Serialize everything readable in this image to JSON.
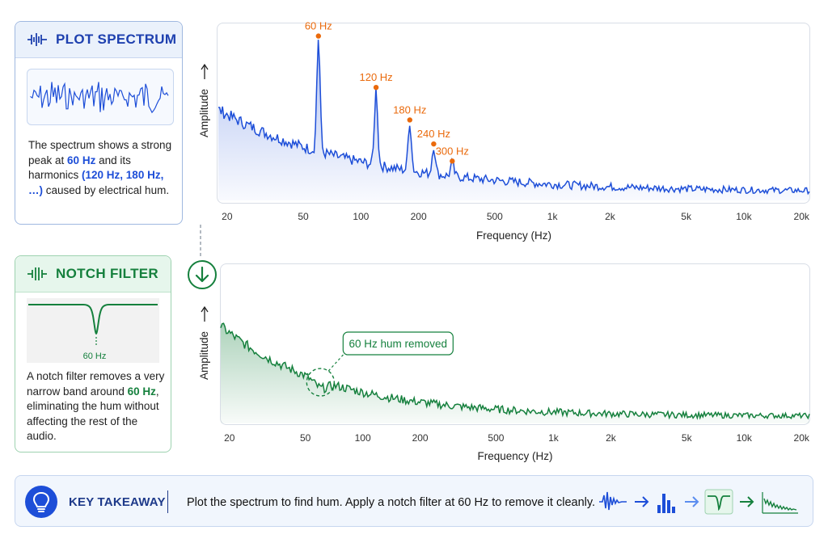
{
  "plot_spectrum": {
    "title": "PLOT SPECTRUM",
    "description_parts": [
      "The spectrum shows a strong peak at ",
      "60 Hz",
      " and its harmonics ",
      "(120 Hz, 180 Hz, …)",
      " caused by electrical hum."
    ]
  },
  "notch_filter": {
    "title": "NOTCH FILTER",
    "notch_label": "60 Hz",
    "description_parts": [
      "A notch filter removes a very narrow band around ",
      "60 Hz",
      ", eliminating the hum without affecting the rest of the audio."
    ]
  },
  "takeaway": {
    "title": "KEY TAKEAWAY",
    "text": "Plot the spectrum to find hum. Apply a notch filter at 60 Hz to remove it cleanly."
  },
  "colors": {
    "blue": "#1d4ed8",
    "green": "#15803d",
    "orange": "#ea6a0c"
  },
  "chart_data": [
    {
      "type": "line",
      "xscale": "log",
      "xlabel": "Frequency (Hz)",
      "ylabel": "Amplitude",
      "x_ticks": [
        20,
        50,
        100,
        200,
        500,
        1000,
        2000,
        5000,
        10000,
        20000
      ],
      "x_tick_labels": [
        "20",
        "50",
        "100",
        "200",
        "500",
        "1k",
        "2k",
        "5k",
        "10k",
        "20k"
      ],
      "xlim": [
        18,
        22000
      ],
      "peaks": [
        {
          "x": 60,
          "label": "60 Hz",
          "y": 0.95
        },
        {
          "x": 120,
          "label": "120 Hz",
          "y": 0.65
        },
        {
          "x": 180,
          "label": "180 Hz",
          "y": 0.46
        },
        {
          "x": 240,
          "label": "240 Hz",
          "y": 0.32
        },
        {
          "x": 300,
          "label": "300 Hz",
          "y": 0.22
        }
      ]
    },
    {
      "type": "line",
      "xscale": "log",
      "xlabel": "Frequency (Hz)",
      "ylabel": "Amplitude",
      "x_ticks": [
        20,
        50,
        100,
        200,
        500,
        1000,
        2000,
        5000,
        10000,
        20000
      ],
      "x_tick_labels": [
        "20",
        "50",
        "100",
        "200",
        "500",
        "1k",
        "2k",
        "5k",
        "10k",
        "20k"
      ],
      "xlim": [
        18,
        22000
      ],
      "annotation": "60 Hz hum removed",
      "annotation_x": 60
    }
  ]
}
